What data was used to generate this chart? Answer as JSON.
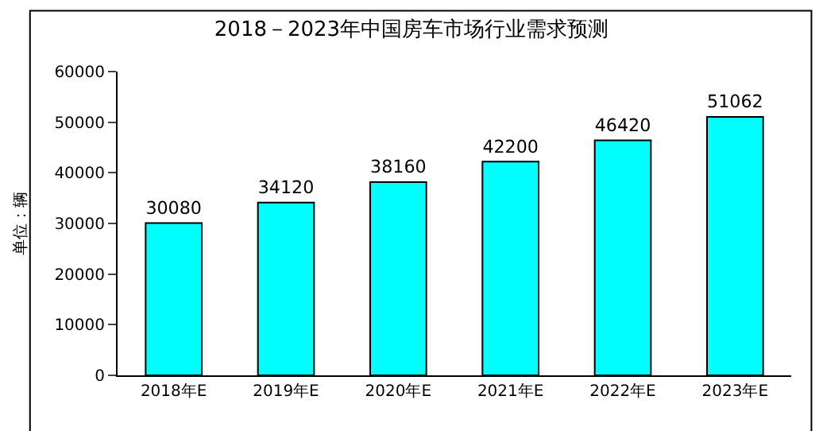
{
  "chart_data": {
    "type": "bar",
    "title": "2018－2023年中国房车市场行业需求预测",
    "ylabel": "单位：辆",
    "categories": [
      "2018年E",
      "2019年E",
      "2020年E",
      "2021年E",
      "2022年E",
      "2023年E"
    ],
    "values": [
      30080,
      34120,
      38160,
      42200,
      46420,
      51062
    ],
    "color": "#00ffff",
    "data_labels": true,
    "ylim": [
      0,
      60000
    ],
    "yticks": [
      0,
      10000,
      20000,
      30000,
      40000,
      50000,
      60000
    ],
    "grid": false,
    "legend": false
  }
}
